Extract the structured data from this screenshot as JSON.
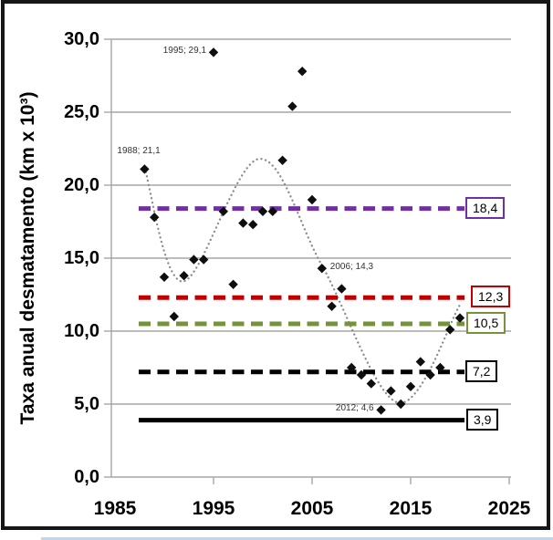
{
  "chart_data": {
    "type": "scatter",
    "title": "",
    "xlabel": "",
    "ylabel": "Taxa anual desmatamento (km x 10³)",
    "grid": "horizontal",
    "x_axis": {
      "min": 1985,
      "max": 2025,
      "ticks": [
        {
          "value": 1985,
          "label": "1985"
        },
        {
          "value": 1995,
          "label": "1995"
        },
        {
          "value": 2005,
          "label": "2005"
        },
        {
          "value": 2015,
          "label": "2015"
        },
        {
          "value": 2025,
          "label": "2025"
        }
      ]
    },
    "y_axis": {
      "min": 0,
      "max": 30,
      "ticks": [
        {
          "value": 30,
          "label": "30,0"
        },
        {
          "value": 25,
          "label": "25,0"
        },
        {
          "value": 20,
          "label": "20,0"
        },
        {
          "value": 15,
          "label": "15,0"
        },
        {
          "value": 10,
          "label": "10,0"
        },
        {
          "value": 5,
          "label": "5,0"
        },
        {
          "value": 0,
          "label": "0,0"
        }
      ]
    },
    "series": [
      {
        "marker": "diamond",
        "color": "#0e0e0e",
        "points": [
          [
            1988,
            21.1
          ],
          [
            1989,
            17.8
          ],
          [
            1990,
            13.7
          ],
          [
            1991,
            11.0
          ],
          [
            1992,
            13.8
          ],
          [
            1993,
            14.9
          ],
          [
            1994,
            14.9
          ],
          [
            1995,
            29.1
          ],
          [
            1996,
            18.2
          ],
          [
            1997,
            13.2
          ],
          [
            1998,
            17.4
          ],
          [
            1999,
            17.3
          ],
          [
            2000,
            18.2
          ],
          [
            2001,
            18.2
          ],
          [
            2002,
            21.7
          ],
          [
            2003,
            25.4
          ],
          [
            2004,
            27.8
          ],
          [
            2005,
            19.0
          ],
          [
            2006,
            14.3
          ],
          [
            2007,
            11.7
          ],
          [
            2008,
            12.9
          ],
          [
            2009,
            7.5
          ],
          [
            2010,
            7.0
          ],
          [
            2011,
            6.4
          ],
          [
            2012,
            4.6
          ],
          [
            2013,
            5.9
          ],
          [
            2014,
            5.0
          ],
          [
            2015,
            6.2
          ],
          [
            2016,
            7.9
          ],
          [
            2017,
            7.0
          ],
          [
            2018,
            7.5
          ],
          [
            2019,
            10.1
          ],
          [
            2020,
            10.9
          ]
        ]
      }
    ],
    "annotations": [
      {
        "text": "1995; 29,1",
        "year": 1995,
        "value": 29.1,
        "placement": "left"
      },
      {
        "text": "1988; 21,1",
        "year": 1988,
        "value": 21.1,
        "placement": "above"
      },
      {
        "text": "2006; 14,3",
        "year": 2006,
        "value": 14.3,
        "placement": "right"
      },
      {
        "text": "2012; 4,6",
        "year": 2012,
        "value": 4.6,
        "placement": "left"
      }
    ],
    "reference_lines": [
      {
        "value": 18.4,
        "label": "18,4",
        "color": "#7030A0",
        "style": "dashed",
        "label_dx": 0
      },
      {
        "value": 12.3,
        "label": "12,3",
        "color": "#C00000",
        "style": "dashed",
        "label_dx": 6
      },
      {
        "value": 10.5,
        "label": "10,5",
        "color": "#76933C",
        "style": "dashed",
        "label_dx": 1
      },
      {
        "value": 7.2,
        "label": "7,2",
        "color": "#000000",
        "style": "dashed",
        "label_dx": 0
      },
      {
        "value": 3.9,
        "label": "3,9",
        "color": "#000000",
        "style": "solid",
        "label_dx": 1
      }
    ],
    "trendline": {
      "style": "dotted",
      "color": "#8c8c8c",
      "anchors": [
        [
          1988,
          21.2
        ],
        [
          1991.9,
          13.4
        ],
        [
          1999.6,
          21.8
        ],
        [
          2006,
          14.5
        ],
        [
          2013.7,
          5.1
        ],
        [
          2020,
          11.8
        ]
      ]
    },
    "layout_hints": {
      "gridline_color": "#a6a6a6",
      "frame_color": "#161616",
      "bottom_strip_color": "#BDD7EE"
    }
  }
}
